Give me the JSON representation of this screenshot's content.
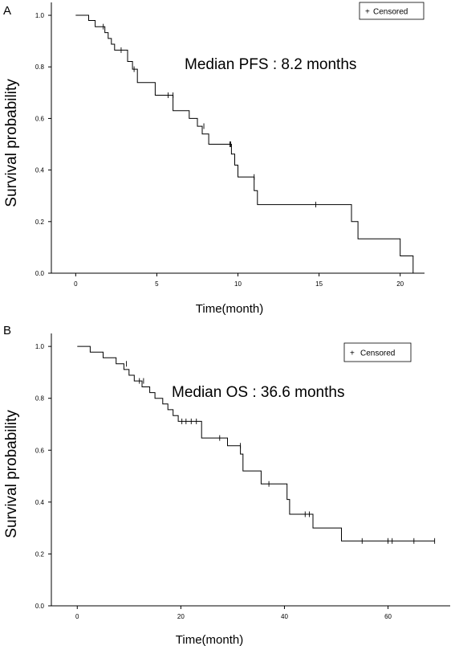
{
  "chart_data": [
    {
      "panel": "A",
      "type": "line",
      "step": true,
      "xlabel": "Time(month)",
      "ylabel": "Survival probability",
      "xlim": [
        -1.5,
        21.5
      ],
      "ylim": [
        0,
        1.05
      ],
      "xticks": [
        0,
        5,
        10,
        15,
        20
      ],
      "yticks": [
        0.0,
        0.2,
        0.4,
        0.6,
        0.8,
        1.0
      ],
      "ytick_labels": [
        "0.0",
        "0.2",
        "0.4",
        "0.6",
        "0.8",
        "1.0"
      ],
      "annotation": "Median PFS : 8.2 months",
      "legend": {
        "marker": "+",
        "label": "Censored",
        "position": "top-right"
      },
      "series": [
        {
          "x": [
            0,
            0.8,
            1.2,
            1.8,
            2.0,
            2.2,
            2.4,
            3.2,
            3.5,
            3.8,
            4.9,
            6.0,
            7.0,
            7.5,
            7.8,
            8.2,
            9.6,
            9.8,
            10.0,
            11.0,
            11.2,
            17.0,
            17.4,
            20.0,
            20.8,
            21.0
          ],
          "y": [
            1.0,
            0.98,
            0.956,
            0.933,
            0.91,
            0.888,
            0.865,
            0.821,
            0.791,
            0.739,
            0.69,
            0.63,
            0.6,
            0.57,
            0.54,
            0.5,
            0.462,
            0.419,
            0.373,
            0.32,
            0.266,
            0.2,
            0.133,
            0.067,
            0.0,
            0.0
          ],
          "censored": [
            {
              "x": 1.7,
              "y": 0.956
            },
            {
              "x": 2.8,
              "y": 0.865
            },
            {
              "x": 3.6,
              "y": 0.791
            },
            {
              "x": 5.7,
              "y": 0.69
            },
            {
              "x": 6.0,
              "y": 0.69
            },
            {
              "x": 7.9,
              "y": 0.57
            },
            {
              "x": 9.5,
              "y": 0.5
            },
            {
              "x": 9.55,
              "y": 0.5
            },
            {
              "x": 11.0,
              "y": 0.373
            },
            {
              "x": 14.8,
              "y": 0.266
            }
          ]
        }
      ]
    },
    {
      "panel": "B",
      "type": "line",
      "step": true,
      "xlabel": "Time(month)",
      "ylabel": "Survival probability",
      "xlim": [
        -5,
        72
      ],
      "ylim": [
        0,
        1.05
      ],
      "xticks": [
        0,
        20,
        40,
        60
      ],
      "yticks": [
        0.0,
        0.2,
        0.4,
        0.6,
        0.8,
        1.0
      ],
      "ytick_labels": [
        "0.0",
        "0.2",
        "0.4",
        "0.6",
        "0.8",
        "1.0"
      ],
      "annotation": "Median OS : 36.6 months",
      "legend": {
        "marker": "+",
        "label": "Censored",
        "position": "top-right"
      },
      "series": [
        {
          "x": [
            0,
            2.5,
            5.0,
            7.5,
            9.0,
            10.0,
            11.0,
            12.5,
            14.0,
            15.0,
            16.5,
            17.5,
            18.5,
            19.5,
            20.0,
            24.0,
            29.0,
            31.5,
            32.0,
            35.5,
            36.5,
            40.5,
            41.0,
            41.5,
            45.5,
            51.0,
            69.0
          ],
          "y": [
            1.0,
            0.978,
            0.956,
            0.933,
            0.911,
            0.889,
            0.867,
            0.844,
            0.822,
            0.8,
            0.778,
            0.756,
            0.733,
            0.711,
            0.711,
            0.647,
            0.617,
            0.585,
            0.52,
            0.47,
            0.47,
            0.41,
            0.353,
            0.353,
            0.3,
            0.25,
            0.25
          ],
          "censored": [
            {
              "x": 9.5,
              "y": 0.933
            },
            {
              "x": 12.0,
              "y": 0.867
            },
            {
              "x": 12.8,
              "y": 0.867
            },
            {
              "x": 20.2,
              "y": 0.711
            },
            {
              "x": 21.0,
              "y": 0.711
            },
            {
              "x": 22.0,
              "y": 0.711
            },
            {
              "x": 23.0,
              "y": 0.711
            },
            {
              "x": 27.5,
              "y": 0.647
            },
            {
              "x": 31.5,
              "y": 0.617
            },
            {
              "x": 37.0,
              "y": 0.47
            },
            {
              "x": 44.0,
              "y": 0.353
            },
            {
              "x": 44.8,
              "y": 0.353
            },
            {
              "x": 55.0,
              "y": 0.25
            },
            {
              "x": 60.0,
              "y": 0.25
            },
            {
              "x": 60.8,
              "y": 0.25
            },
            {
              "x": 65.0,
              "y": 0.25
            },
            {
              "x": 69.0,
              "y": 0.25
            }
          ]
        }
      ]
    }
  ]
}
